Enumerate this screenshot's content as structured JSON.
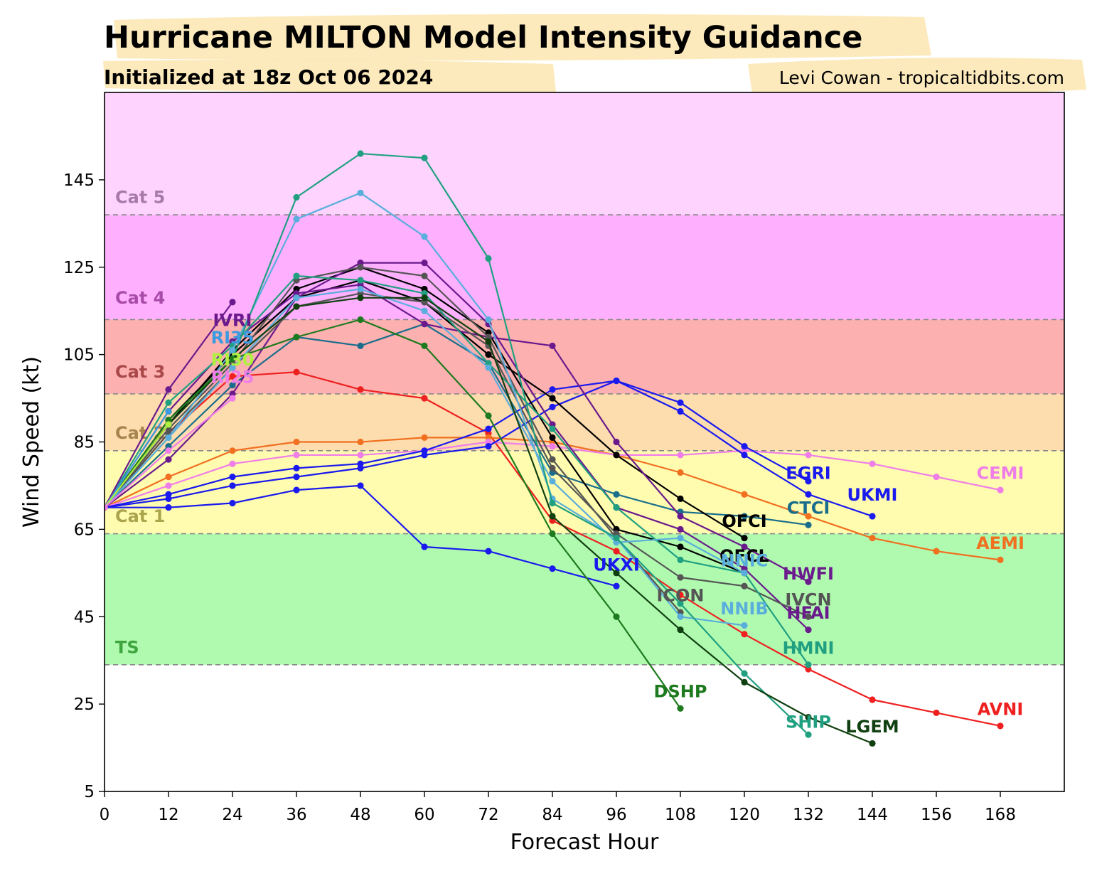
{
  "title": "Hurricane MILTON Model Intensity Guidance",
  "subtitle": "Initialized at 18z Oct 06 2024",
  "credit": "Levi Cowan - tropicaltidbits.com",
  "chart_data": {
    "type": "line",
    "title": "Hurricane MILTON Model Intensity Guidance",
    "subtitle": "Initialized at 18z Oct 06 2024",
    "xlabel": "Forecast Hour",
    "ylabel": "Wind Speed (kt)",
    "xlim": [
      0,
      180
    ],
    "ylim": [
      5,
      165
    ],
    "x_ticks": [
      0,
      12,
      24,
      36,
      48,
      60,
      72,
      84,
      96,
      108,
      120,
      132,
      144,
      156,
      168
    ],
    "y_ticks": [
      5,
      25,
      45,
      65,
      85,
      105,
      125,
      145
    ],
    "grid": false,
    "legend": "none",
    "bands": [
      {
        "label": "TS",
        "from": 34,
        "to": 64,
        "color": "#b0fab0",
        "label_color": "#3fa63f",
        "label_y": 38
      },
      {
        "label": "Cat 1",
        "from": 64,
        "to": 83,
        "color": "#fffcb0",
        "label_color": "#aaa44c",
        "label_y": 68
      },
      {
        "label": "Cat 2",
        "from": 83,
        "to": 96,
        "color": "#fddcae",
        "label_color": "#a7834d",
        "label_y": 87
      },
      {
        "label": "Cat 3",
        "from": 96,
        "to": 113,
        "color": "#fdb0b0",
        "label_color": "#a94848",
        "label_y": 101
      },
      {
        "label": "Cat 4",
        "from": 113,
        "to": 137,
        "color": "#feb0fe",
        "label_color": "#a84aa8",
        "label_y": 118
      },
      {
        "label": "Cat 5",
        "from": 137,
        "to": 165,
        "color": "#fed4fe",
        "label_color": "#a97aa9",
        "label_y": 141
      }
    ],
    "series": [
      {
        "name": "AVNI",
        "color": "#ee2020",
        "x": [
          0,
          12,
          24,
          36,
          48,
          60,
          72,
          84,
          96,
          108,
          120,
          132,
          144,
          156,
          168
        ],
        "y": [
          70,
          87,
          100,
          101,
          97,
          95,
          87,
          67,
          60,
          50,
          41,
          33,
          26,
          23,
          20
        ],
        "label_pos": [
          168,
          24
        ]
      },
      {
        "name": "AEMI",
        "color": "#f07020",
        "x": [
          0,
          12,
          24,
          36,
          48,
          60,
          72,
          84,
          96,
          108,
          120,
          132,
          144,
          156,
          168
        ],
        "y": [
          70,
          77,
          83,
          85,
          85,
          86,
          86,
          85,
          82,
          78,
          73,
          68,
          63,
          60,
          58
        ],
        "label_pos": [
          168,
          62
        ]
      },
      {
        "name": "CEMI",
        "color": "#f07ee8",
        "x": [
          0,
          12,
          24,
          36,
          48,
          60,
          72,
          84,
          96,
          108,
          120,
          132,
          144,
          156,
          168
        ],
        "y": [
          70,
          75,
          80,
          82,
          82,
          83,
          85,
          84,
          82,
          82,
          83,
          82,
          80,
          77,
          74
        ],
        "label_pos": [
          168,
          78
        ]
      },
      {
        "name": "EGRI",
        "color": "#1a1aee",
        "x": [
          0,
          12,
          24,
          36,
          48,
          60,
          72,
          84,
          96,
          108,
          120,
          132
        ],
        "y": [
          70,
          73,
          77,
          79,
          80,
          83,
          88,
          97,
          99,
          94,
          84,
          76
        ],
        "label_pos": [
          132,
          78
        ]
      },
      {
        "name": "UKMI",
        "color": "#1a1aee",
        "x": [
          0,
          12,
          24,
          36,
          48,
          60,
          72,
          84,
          96,
          108,
          120,
          132,
          144
        ],
        "y": [
          70,
          72,
          75,
          77,
          79,
          82,
          84,
          93,
          99,
          92,
          82,
          73,
          68
        ],
        "label_pos": [
          144,
          73
        ]
      },
      {
        "name": "UKXI",
        "color": "#1a1aee",
        "x": [
          0,
          12,
          24,
          36,
          48,
          60,
          72,
          84,
          96
        ],
        "y": [
          70,
          70,
          71,
          74,
          75,
          61,
          60,
          56,
          52
        ],
        "label_pos": [
          96,
          57
        ]
      },
      {
        "name": "CTCI",
        "color": "#1a6e8c",
        "x": [
          0,
          12,
          24,
          36,
          48,
          60,
          72,
          84,
          96,
          108,
          120,
          132
        ],
        "y": [
          70,
          84,
          98,
          109,
          107,
          112,
          103,
          78,
          73,
          69,
          68,
          66
        ],
        "label_pos": [
          132,
          70
        ]
      },
      {
        "name": "OFCI",
        "color": "#000000",
        "x": [
          0,
          12,
          24,
          36,
          48,
          60,
          72,
          84,
          96,
          108,
          120
        ],
        "y": [
          70,
          90,
          105,
          118,
          122,
          117,
          105,
          95,
          82,
          72,
          63
        ],
        "label_pos": [
          120,
          67
        ]
      },
      {
        "name": "OFCL",
        "color": "#000000",
        "x": [
          0,
          12,
          24,
          36,
          48,
          60,
          72,
          84,
          96,
          108,
          120
        ],
        "y": [
          70,
          89,
          106,
          120,
          125,
          120,
          110,
          86,
          65,
          61,
          55
        ],
        "label_pos": [
          120,
          59
        ]
      },
      {
        "name": "HWFI",
        "color": "#6a1a8c",
        "x": [
          0,
          12,
          24,
          36,
          48,
          60,
          72,
          84,
          96,
          108,
          120,
          132
        ],
        "y": [
          70,
          92,
          108,
          119,
          121,
          112,
          109,
          107,
          85,
          68,
          61,
          53
        ],
        "label_pos": [
          132,
          55
        ]
      },
      {
        "name": "HFAI",
        "color": "#6a1a8c",
        "x": [
          0,
          12,
          24,
          36,
          48,
          60,
          72,
          84,
          96,
          108,
          120,
          132
        ],
        "y": [
          70,
          81,
          96,
          118,
          126,
          126,
          112,
          89,
          70,
          65,
          56,
          42
        ],
        "label_pos": [
          132,
          46
        ]
      },
      {
        "name": "IVCN",
        "color": "#555555",
        "x": [
          0,
          12,
          24,
          36,
          48,
          60,
          72,
          84,
          96,
          108,
          120,
          132
        ],
        "y": [
          70,
          87,
          102,
          116,
          119,
          117,
          107,
          79,
          64,
          54,
          52,
          45
        ],
        "label_pos": [
          132,
          49
        ]
      },
      {
        "name": "ICON",
        "color": "#555555",
        "x": [
          0,
          12,
          24,
          36,
          48,
          60,
          72,
          84,
          96,
          108
        ],
        "y": [
          70,
          88,
          103,
          122,
          125,
          123,
          109,
          81,
          63,
          46
        ],
        "label_pos": [
          108,
          50
        ]
      },
      {
        "name": "HMNI",
        "color": "#20a080",
        "x": [
          0,
          12,
          24,
          36,
          48,
          60,
          72,
          84,
          96,
          108,
          120,
          132
        ],
        "y": [
          70,
          94,
          107,
          123,
          122,
          119,
          103,
          88,
          70,
          58,
          55,
          34
        ],
        "label_pos": [
          132,
          38
        ]
      },
      {
        "name": "NNIB",
        "color": "#5aaedc",
        "x": [
          0,
          12,
          24,
          36,
          48,
          60,
          72,
          84,
          96,
          108,
          120
        ],
        "y": [
          70,
          86,
          106,
          136,
          142,
          132,
          113,
          72,
          63,
          45,
          43
        ],
        "label_pos": [
          120,
          47
        ]
      },
      {
        "name": "NNIC",
        "color": "#5aaedc",
        "x": [
          0,
          12,
          24,
          36,
          48,
          60,
          72,
          84,
          96,
          108,
          120
        ],
        "y": [
          70,
          86,
          102,
          118,
          120,
          115,
          102,
          76,
          62,
          63,
          55
        ],
        "label_pos": [
          120,
          58
        ]
      },
      {
        "name": "SHIP",
        "color": "#20a080",
        "x": [
          0,
          12,
          24,
          36,
          48,
          60,
          72,
          84,
          96,
          108,
          120,
          132
        ],
        "y": [
          70,
          90,
          104,
          141,
          151,
          150,
          127,
          71,
          63,
          48,
          32,
          18
        ],
        "label_pos": [
          132,
          21
        ]
      },
      {
        "name": "LGEM",
        "color": "#104010",
        "x": [
          0,
          12,
          24,
          36,
          48,
          60,
          72,
          84,
          96,
          108,
          120,
          132,
          144
        ],
        "y": [
          70,
          89,
          104,
          116,
          118,
          118,
          108,
          68,
          55,
          42,
          30,
          22,
          16
        ],
        "label_pos": [
          144,
          20
        ]
      },
      {
        "name": "DSHP",
        "color": "#1e7a1e",
        "x": [
          0,
          12,
          24,
          36,
          48,
          60,
          72,
          84,
          96,
          108
        ],
        "y": [
          70,
          90,
          104,
          109,
          113,
          107,
          91,
          64,
          45,
          24
        ],
        "label_pos": [
          108,
          28
        ]
      },
      {
        "name": "IVRI",
        "color": "#6a1a8c",
        "x": [
          0,
          12,
          24
        ],
        "y": [
          70,
          97,
          117
        ],
        "label_pos": [
          24,
          113
        ]
      },
      {
        "name": "RI35",
        "color": "#3c9ae0",
        "x": [
          0,
          12
        ],
        "y": [
          70,
          92
        ],
        "label_pos": [
          24,
          109
        ]
      },
      {
        "name": "RI30",
        "color": "#b0f040",
        "x": [
          0,
          12
        ],
        "y": [
          70,
          89
        ],
        "label_pos": [
          24,
          104
        ]
      },
      {
        "name": "RI25",
        "color": "#f07ee8",
        "x": [
          0,
          12,
          24
        ],
        "y": [
          70,
          83,
          95
        ],
        "label_pos": [
          24,
          100
        ]
      }
    ]
  }
}
